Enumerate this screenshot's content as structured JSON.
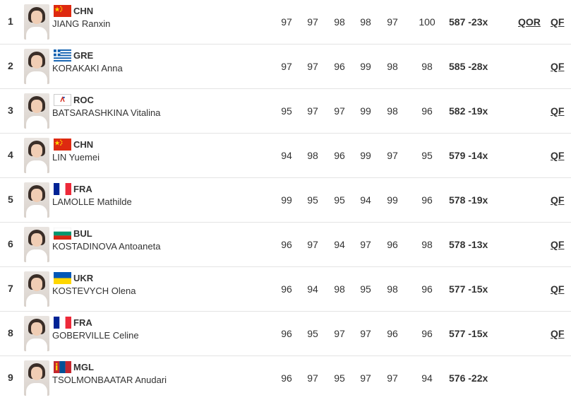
{
  "rows": [
    {
      "rank": "1",
      "noc": "CHN",
      "name": "JIANG Ranxin",
      "scores": [
        "97",
        "97",
        "98",
        "98",
        "97",
        "100"
      ],
      "total": "587 -23x",
      "qor": "QOR",
      "qf": "QF",
      "flag": "chn-flag-icon"
    },
    {
      "rank": "2",
      "noc": "GRE",
      "name": "KORAKAKI Anna",
      "scores": [
        "97",
        "97",
        "96",
        "99",
        "98",
        "98"
      ],
      "total": "585 -28x",
      "qor": "",
      "qf": "QF",
      "flag": "gre-flag-icon"
    },
    {
      "rank": "3",
      "noc": "ROC",
      "name": "BATSARASHKINA Vitalina",
      "scores": [
        "95",
        "97",
        "97",
        "99",
        "98",
        "96"
      ],
      "total": "582 -19x",
      "qor": "",
      "qf": "QF",
      "flag": "roc-flag-icon"
    },
    {
      "rank": "4",
      "noc": "CHN",
      "name": "LIN Yuemei",
      "scores": [
        "94",
        "98",
        "96",
        "99",
        "97",
        "95"
      ],
      "total": "579 -14x",
      "qor": "",
      "qf": "QF",
      "flag": "chn-flag-icon"
    },
    {
      "rank": "5",
      "noc": "FRA",
      "name": "LAMOLLE Mathilde",
      "scores": [
        "99",
        "95",
        "95",
        "94",
        "99",
        "96"
      ],
      "total": "578 -19x",
      "qor": "",
      "qf": "QF",
      "flag": "fra-flag-icon"
    },
    {
      "rank": "6",
      "noc": "BUL",
      "name": "KOSTADINOVA Antoaneta",
      "scores": [
        "96",
        "97",
        "94",
        "97",
        "96",
        "98"
      ],
      "total": "578 -13x",
      "qor": "",
      "qf": "QF",
      "flag": "bul-flag-icon"
    },
    {
      "rank": "7",
      "noc": "UKR",
      "name": "KOSTEVYCH Olena",
      "scores": [
        "96",
        "94",
        "98",
        "95",
        "98",
        "96"
      ],
      "total": "577 -15x",
      "qor": "",
      "qf": "QF",
      "flag": "ukr-flag-icon"
    },
    {
      "rank": "8",
      "noc": "FRA",
      "name": "GOBERVILLE Celine",
      "scores": [
        "96",
        "95",
        "97",
        "97",
        "96",
        "96"
      ],
      "total": "577 -15x",
      "qor": "",
      "qf": "QF",
      "flag": "fra-flag-icon"
    },
    {
      "rank": "9",
      "noc": "MGL",
      "name": "TSOLMONBAATAR Anudari",
      "scores": [
        "96",
        "97",
        "95",
        "97",
        "97",
        "94"
      ],
      "total": "576 -22x",
      "qor": "",
      "qf": "",
      "flag": "mgl-flag-icon"
    }
  ],
  "colors": {
    "text": "#333333",
    "divider": "#e3e3e3",
    "chn_red": "#de2910",
    "chn_yellow": "#ffde00",
    "gre_blue": "#0d5eaf",
    "fra_blue": "#002395",
    "fra_red": "#ed2939",
    "bul_green": "#00966e",
    "bul_red": "#d62612",
    "ukr_blue": "#0057b7",
    "ukr_yellow": "#ffd700",
    "mgl_red": "#c4272f",
    "mgl_blue": "#015197"
  }
}
